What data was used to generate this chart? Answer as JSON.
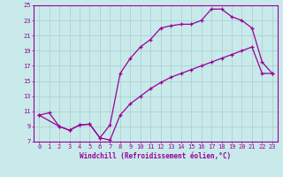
{
  "xlabel": "Windchill (Refroidissement éolien,°C)",
  "bg_color": "#c8eaea",
  "line_color": "#990099",
  "grid_color": "#aacccc",
  "xlim": [
    -0.5,
    23.5
  ],
  "ylim": [
    7,
    25
  ],
  "xticks": [
    0,
    1,
    2,
    3,
    4,
    5,
    6,
    7,
    8,
    9,
    10,
    11,
    12,
    13,
    14,
    15,
    16,
    17,
    18,
    19,
    20,
    21,
    22,
    23
  ],
  "yticks": [
    7,
    9,
    11,
    13,
    15,
    17,
    19,
    21,
    23,
    25
  ],
  "line1_x": [
    0,
    1,
    2,
    3,
    4,
    5,
    6,
    7,
    8,
    9,
    10,
    11,
    12,
    13,
    14,
    15,
    16,
    17,
    18,
    19,
    20,
    21,
    22,
    23
  ],
  "line1_y": [
    10.5,
    10.8,
    9.0,
    8.5,
    9.2,
    9.3,
    7.5,
    9.2,
    16.0,
    18.0,
    19.5,
    20.5,
    22.0,
    22.3,
    22.5,
    22.5,
    23.0,
    24.5,
    24.5,
    23.5,
    23.0,
    22.0,
    17.5,
    16.0
  ],
  "line2_x": [
    0,
    2,
    3,
    4,
    5,
    6,
    7,
    8,
    9,
    10,
    11,
    12,
    13,
    14,
    15,
    16,
    17,
    18,
    19,
    20,
    21,
    22,
    23
  ],
  "line2_y": [
    10.5,
    9.0,
    8.5,
    9.2,
    9.3,
    7.5,
    7.2,
    10.5,
    12.0,
    13.0,
    14.0,
    14.8,
    15.5,
    16.0,
    16.5,
    17.0,
    17.5,
    18.0,
    18.5,
    19.0,
    19.5,
    16.0,
    16.0
  ]
}
